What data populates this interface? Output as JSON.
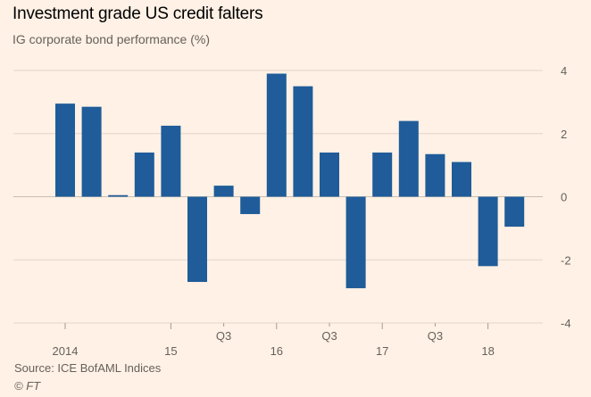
{
  "header": {
    "title": "Investment grade US credit falters",
    "subtitle": "IG corporate bond performance (%)"
  },
  "footer": {
    "source": "Source: ICE BofAML Indices",
    "copyright": "© FT"
  },
  "colors": {
    "bar": "#1f5c99",
    "grid": "#e0d5cc",
    "background": "#fff1e5"
  },
  "chart_data": {
    "type": "bar",
    "title": "Investment grade US credit falters",
    "subtitle": "IG corporate bond performance (%)",
    "xlabel": "",
    "ylabel": "",
    "ylim": [
      -4,
      4
    ],
    "yticks": [
      4,
      2,
      0,
      -2,
      -4
    ],
    "ytick_labels": [
      "4",
      "2",
      "0",
      "-2",
      "-4"
    ],
    "categories": [
      "2014 Q1",
      "2014 Q2",
      "2014 Q3",
      "2014 Q4",
      "2015 Q1",
      "2015 Q2",
      "2015 Q3",
      "2015 Q4",
      "2016 Q1",
      "2016 Q2",
      "2016 Q3",
      "2016 Q4",
      "2017 Q1",
      "2017 Q2",
      "2017 Q3",
      "2017 Q4",
      "2018 Q1",
      "2018 Q2"
    ],
    "x_tick_labels": [
      {
        "index": 0,
        "label": "2014",
        "row": 2
      },
      {
        "index": 4,
        "label": "15",
        "row": 2
      },
      {
        "index": 6,
        "label": "Q3",
        "row": 1
      },
      {
        "index": 8,
        "label": "16",
        "row": 2
      },
      {
        "index": 10,
        "label": "Q3",
        "row": 1
      },
      {
        "index": 12,
        "label": "17",
        "row": 2
      },
      {
        "index": 14,
        "label": "Q3",
        "row": 1
      },
      {
        "index": 16,
        "label": "18",
        "row": 2
      }
    ],
    "values": [
      2.95,
      2.85,
      0.05,
      1.4,
      2.25,
      -2.7,
      0.35,
      -0.55,
      3.9,
      3.5,
      1.4,
      -2.9,
      1.4,
      2.4,
      1.35,
      1.1,
      -2.2,
      -0.95
    ],
    "grid": true,
    "legend": "none"
  }
}
